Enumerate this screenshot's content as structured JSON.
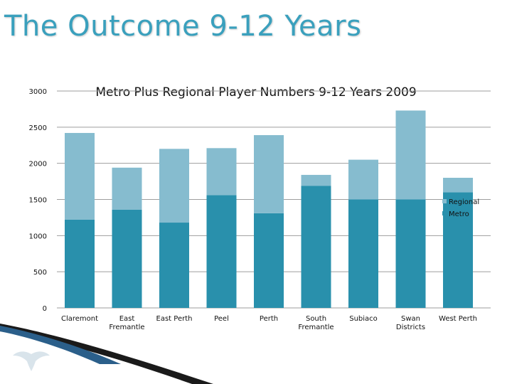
{
  "slide": {
    "title": "The Outcome 9-12 Years"
  },
  "colors": {
    "metro": "#2990ac",
    "regional": "#86bccf",
    "title": "#3aa0bd",
    "axis": "#9e9e9e"
  },
  "chart_data": {
    "type": "bar",
    "stacked": true,
    "title": "Metro Plus Regional Player Numbers 9-12 Years 2009",
    "categories": [
      "Claremont",
      "East Fremantle",
      "East Perth",
      "Peel",
      "Perth",
      "South Fremantle",
      "Subiaco",
      "Swan Districts",
      "West Perth"
    ],
    "series": [
      {
        "name": "Metro",
        "values": [
          1220,
          1360,
          1180,
          1560,
          1310,
          1690,
          1500,
          1500,
          1600
        ]
      },
      {
        "name": "Regional",
        "values": [
          1200,
          580,
          1020,
          650,
          1080,
          150,
          550,
          1230,
          200
        ]
      }
    ],
    "ylim": [
      0,
      3000
    ],
    "yticks": [
      0,
      500,
      1000,
      1500,
      2000,
      2500,
      3000
    ],
    "ytick_labels": [
      "0",
      "500",
      "1000",
      "1500",
      "2000",
      "2500",
      "3000"
    ],
    "grid": true,
    "legend": {
      "position": "right",
      "entries": [
        "Regional",
        "Metro"
      ]
    }
  }
}
